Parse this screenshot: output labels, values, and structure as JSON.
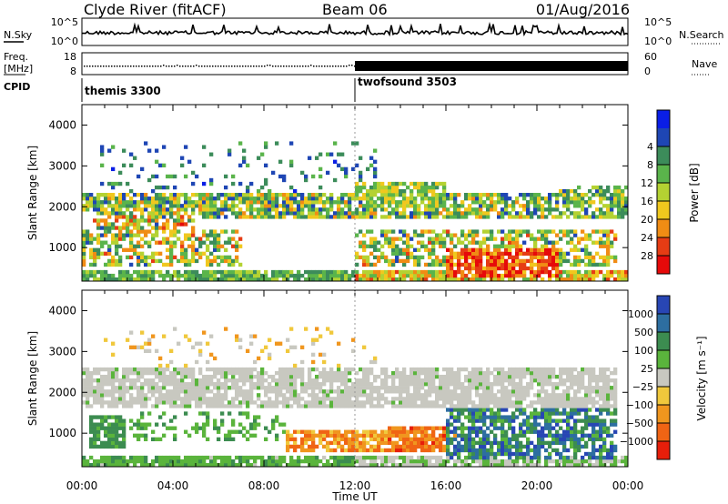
{
  "header": {
    "title": "Clyde River (fitACF)",
    "beam": "Beam 06",
    "date": "01/Aug/2016"
  },
  "panels": {
    "nsky": {
      "label": "N.Sky",
      "tick_top": "10^5",
      "tick_bottom": "10^0",
      "right_label": "N.Search",
      "right_tick_top": "10^5",
      "right_tick_bottom": "10^0"
    },
    "freq": {
      "label_1": "Freq.",
      "label_2": "[MHz]",
      "tick_top": "18",
      "tick_bottom": "8",
      "right_label": "Nave",
      "right_tick_top": "60",
      "right_tick_bottom": "0"
    },
    "cpid": {
      "label": "CPID",
      "mode_1": "themis 3300",
      "mode_2": "twofsound 3503"
    }
  },
  "chart_data": [
    {
      "type": "heatmap",
      "name": "power",
      "ylabel": "Slant Range [km]",
      "ylim": [
        180,
        4500
      ],
      "yticks": [
        1000,
        2000,
        3000,
        4000
      ],
      "xlim": [
        0,
        24
      ],
      "colorbar": {
        "label": "Power [dB]",
        "ticks": [
          "4",
          "8",
          "12",
          "16",
          "20",
          "24",
          "28"
        ],
        "colors": [
          "#0a1ee6",
          "#1e46b4",
          "#3c8c5a",
          "#5ab44b",
          "#b4d232",
          "#f0c81e",
          "#f08c14",
          "#e63c14",
          "#e60a0a"
        ]
      }
    },
    {
      "type": "heatmap",
      "name": "velocity",
      "ylabel": "Slant Range [km]",
      "ylim": [
        180,
        4500
      ],
      "yticks": [
        1000,
        2000,
        3000,
        4000
      ],
      "xlim": [
        0,
        24
      ],
      "colorbar": {
        "label": "Velocity [m s⁻¹]",
        "ticks": [
          "1000",
          "500",
          "100",
          "25",
          "−25",
          "−100",
          "−500",
          "−1000"
        ],
        "colors": [
          "#2846b4",
          "#2d6ea0",
          "#3c8c50",
          "#5ab43c",
          "#c8c8c0",
          "#f0c83c",
          "#f0961e",
          "#f06414",
          "#e61e0a"
        ]
      }
    }
  ],
  "xaxis": {
    "label": "Time UT",
    "ticks": [
      "00:00",
      "04:00",
      "08:00",
      "12:00",
      "16:00",
      "20:00",
      "00:00"
    ]
  }
}
